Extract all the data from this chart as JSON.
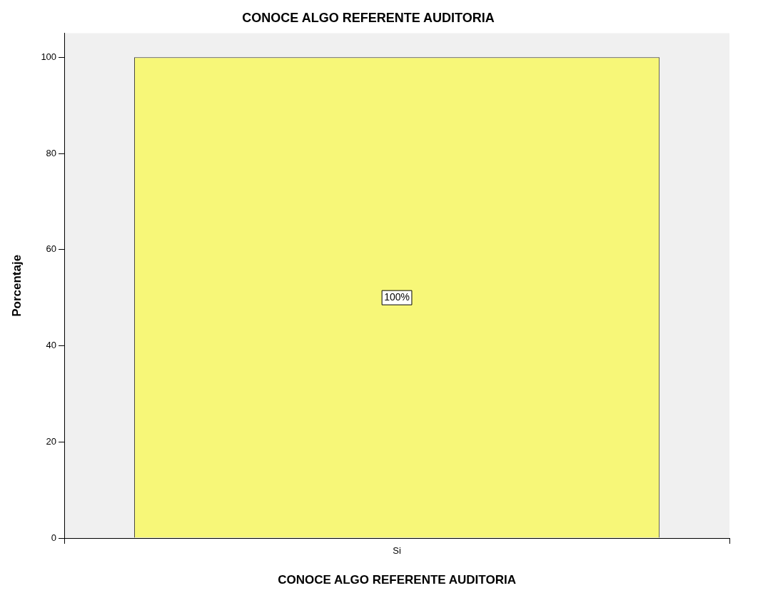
{
  "chart_data": {
    "type": "bar",
    "title": "CONOCE ALGO REFERENTE AUDITORIA",
    "xlabel": "CONOCE ALGO REFERENTE AUDITORIA",
    "ylabel": "Porcentaje",
    "categories": [
      "Si"
    ],
    "values": [
      100
    ],
    "color": "#f7f778",
    "value_labels": [
      "100%"
    ],
    "ylim": [
      0,
      105
    ],
    "yticks": [
      0,
      20,
      40,
      60,
      80,
      100
    ],
    "grid": false,
    "legend": false
  }
}
